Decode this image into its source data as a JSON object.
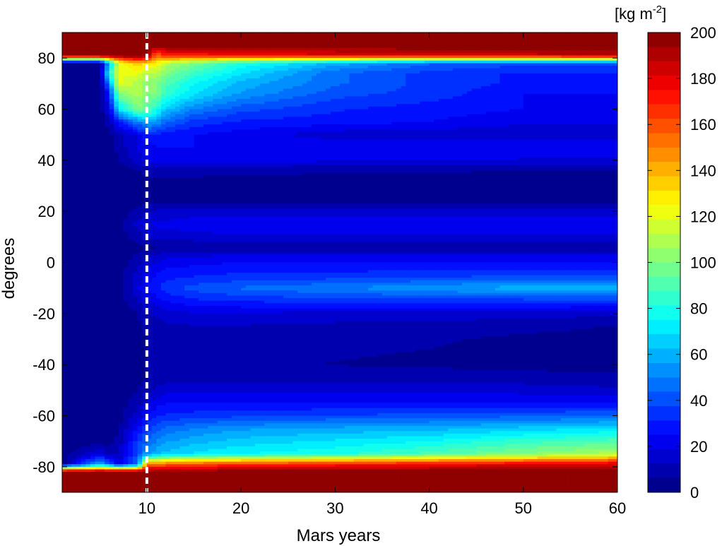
{
  "chart_data": {
    "type": "heatmap",
    "title": "",
    "xlabel": "Mars years",
    "ylabel": "degrees",
    "xlim": [
      1,
      60
    ],
    "ylim": [
      -90,
      90
    ],
    "xticks": [
      10,
      20,
      30,
      40,
      50,
      60
    ],
    "xtick_labels": [
      "10",
      "20",
      "30",
      "40",
      "50",
      "60"
    ],
    "yticks": [
      80,
      60,
      40,
      20,
      0,
      -20,
      -40,
      -60,
      -80
    ],
    "ytick_labels": [
      "80",
      "60",
      "40",
      "20",
      "0",
      "-20",
      "-40",
      "-60",
      "-80"
    ],
    "colorbar": {
      "units_label": "[kg m",
      "units_exponent": "-2",
      "units_close": "]",
      "range": [
        0,
        200
      ],
      "ticks": [
        0,
        20,
        40,
        60,
        80,
        100,
        120,
        140,
        160,
        180,
        200
      ],
      "tick_labels": [
        "0",
        "20",
        "40",
        "60",
        "80",
        "100",
        "120",
        "140",
        "160",
        "180",
        "200"
      ],
      "colormap": "jet"
    },
    "reference_line": {
      "x": 10,
      "style": "dashed",
      "color": "#ffffff"
    },
    "latitude_profiles": {
      "latitudes": [
        90,
        85,
        81,
        78,
        74,
        70,
        66,
        60,
        55,
        50,
        45,
        40,
        36,
        30,
        24,
        20,
        15,
        10,
        6,
        2,
        -2,
        -6,
        -10,
        -15,
        -20,
        -25,
        -30,
        -35,
        -40,
        -45,
        -50,
        -55,
        -60,
        -65,
        -70,
        -75,
        -79,
        -82,
        -85,
        -90
      ],
      "years": [
        1,
        5,
        6,
        7,
        9,
        10,
        11,
        12,
        15,
        20,
        30,
        40,
        50,
        60
      ],
      "values_kg_m2": [
        [
          200,
          200,
          200,
          200,
          200,
          200,
          200,
          200,
          200,
          200,
          200,
          200,
          200,
          200
        ],
        [
          200,
          200,
          200,
          200,
          200,
          200,
          200,
          200,
          200,
          200,
          200,
          200,
          200,
          200
        ],
        [
          200,
          200,
          200,
          200,
          200,
          200,
          150,
          170,
          170,
          175,
          180,
          185,
          185,
          190
        ],
        [
          2,
          2,
          60,
          120,
          140,
          130,
          130,
          110,
          100,
          80,
          60,
          45,
          40,
          40
        ],
        [
          2,
          2,
          80,
          120,
          120,
          110,
          110,
          100,
          85,
          70,
          45,
          35,
          30,
          30
        ],
        [
          2,
          2,
          50,
          120,
          110,
          100,
          100,
          90,
          75,
          60,
          45,
          35,
          30,
          30
        ],
        [
          2,
          2,
          30,
          100,
          110,
          100,
          100,
          85,
          70,
          55,
          40,
          35,
          25,
          25
        ],
        [
          2,
          2,
          20,
          70,
          100,
          95,
          80,
          65,
          50,
          40,
          32,
          28,
          25,
          20
        ],
        [
          2,
          2,
          10,
          30,
          50,
          60,
          55,
          45,
          35,
          30,
          28,
          25,
          20,
          20
        ],
        [
          2,
          2,
          4,
          10,
          20,
          30,
          30,
          28,
          25,
          22,
          15,
          14,
          14,
          14
        ],
        [
          2,
          2,
          4,
          8,
          20,
          22,
          25,
          25,
          25,
          25,
          25,
          25,
          25,
          25
        ],
        [
          2,
          2,
          3,
          6,
          15,
          20,
          22,
          22,
          22,
          22,
          20,
          20,
          18,
          18
        ],
        [
          2,
          2,
          2,
          3,
          6,
          8,
          8,
          8,
          8,
          8,
          7,
          7,
          6,
          6
        ],
        [
          2,
          2,
          2,
          2,
          3,
          4,
          4,
          4,
          4,
          3,
          3,
          3,
          3,
          3
        ],
        [
          2,
          2,
          2,
          2,
          3,
          4,
          4,
          4,
          4,
          3,
          3,
          3,
          3,
          3
        ],
        [
          2,
          2,
          2,
          3,
          8,
          12,
          14,
          15,
          16,
          16,
          16,
          16,
          16,
          16
        ],
        [
          2,
          2,
          2,
          3,
          15,
          18,
          20,
          20,
          22,
          22,
          22,
          24,
          25,
          25
        ],
        [
          2,
          2,
          2,
          2,
          10,
          14,
          16,
          16,
          17,
          18,
          18,
          18,
          18,
          18
        ],
        [
          2,
          2,
          2,
          2,
          4,
          5,
          5,
          5,
          5,
          5,
          5,
          5,
          5,
          5
        ],
        [
          2,
          2,
          2,
          2,
          8,
          12,
          15,
          18,
          20,
          22,
          22,
          22,
          22,
          22
        ],
        [
          2,
          2,
          2,
          3,
          12,
          18,
          22,
          25,
          26,
          28,
          28,
          28,
          28,
          28
        ],
        [
          2,
          2,
          2,
          3,
          15,
          22,
          26,
          30,
          32,
          34,
          36,
          38,
          40,
          40
        ],
        [
          2,
          2,
          2,
          3,
          18,
          25,
          30,
          35,
          40,
          45,
          50,
          55,
          60,
          62
        ],
        [
          2,
          2,
          2,
          3,
          12,
          18,
          22,
          25,
          30,
          32,
          35,
          35,
          35,
          35
        ],
        [
          2,
          2,
          2,
          2,
          6,
          10,
          14,
          16,
          18,
          18,
          16,
          16,
          16,
          14
        ],
        [
          2,
          2,
          2,
          2,
          5,
          8,
          10,
          11,
          12,
          12,
          11,
          10,
          8,
          6
        ],
        [
          2,
          2,
          2,
          2,
          4,
          6,
          8,
          9,
          9,
          9,
          8,
          7,
          5,
          4
        ],
        [
          2,
          2,
          2,
          2,
          4,
          6,
          8,
          8,
          8,
          8,
          7,
          6,
          4,
          3
        ],
        [
          2,
          2,
          2,
          2,
          4,
          6,
          8,
          8,
          8,
          8,
          6,
          5,
          4,
          3
        ],
        [
          2,
          2,
          2,
          2,
          4,
          6,
          8,
          9,
          10,
          10,
          10,
          10,
          9,
          8
        ],
        [
          2,
          2,
          2,
          2,
          6,
          10,
          14,
          16,
          18,
          18,
          18,
          18,
          16,
          14
        ],
        [
          2,
          2,
          2,
          2,
          10,
          15,
          22,
          25,
          25,
          25,
          25,
          25,
          25,
          25
        ],
        [
          2,
          2,
          2,
          3,
          15,
          25,
          30,
          32,
          34,
          36,
          38,
          40,
          42,
          44
        ],
        [
          2,
          2,
          3,
          5,
          25,
          35,
          40,
          45,
          50,
          55,
          58,
          60,
          65,
          70
        ],
        [
          2,
          2,
          4,
          8,
          35,
          45,
          50,
          55,
          60,
          65,
          70,
          75,
          85,
          90
        ],
        [
          2,
          20,
          10,
          12,
          40,
          55,
          60,
          65,
          70,
          75,
          80,
          90,
          100,
          110
        ],
        [
          2,
          60,
          40,
          20,
          45,
          150,
          150,
          155,
          160,
          165,
          170,
          175,
          180,
          185
        ],
        [
          200,
          200,
          200,
          200,
          200,
          200,
          200,
          200,
          200,
          200,
          200,
          200,
          200,
          200
        ],
        [
          200,
          200,
          200,
          200,
          200,
          200,
          200,
          200,
          200,
          200,
          200,
          200,
          200,
          200
        ],
        [
          200,
          200,
          200,
          200,
          200,
          200,
          200,
          200,
          200,
          200,
          200,
          200,
          200,
          200
        ]
      ]
    }
  }
}
